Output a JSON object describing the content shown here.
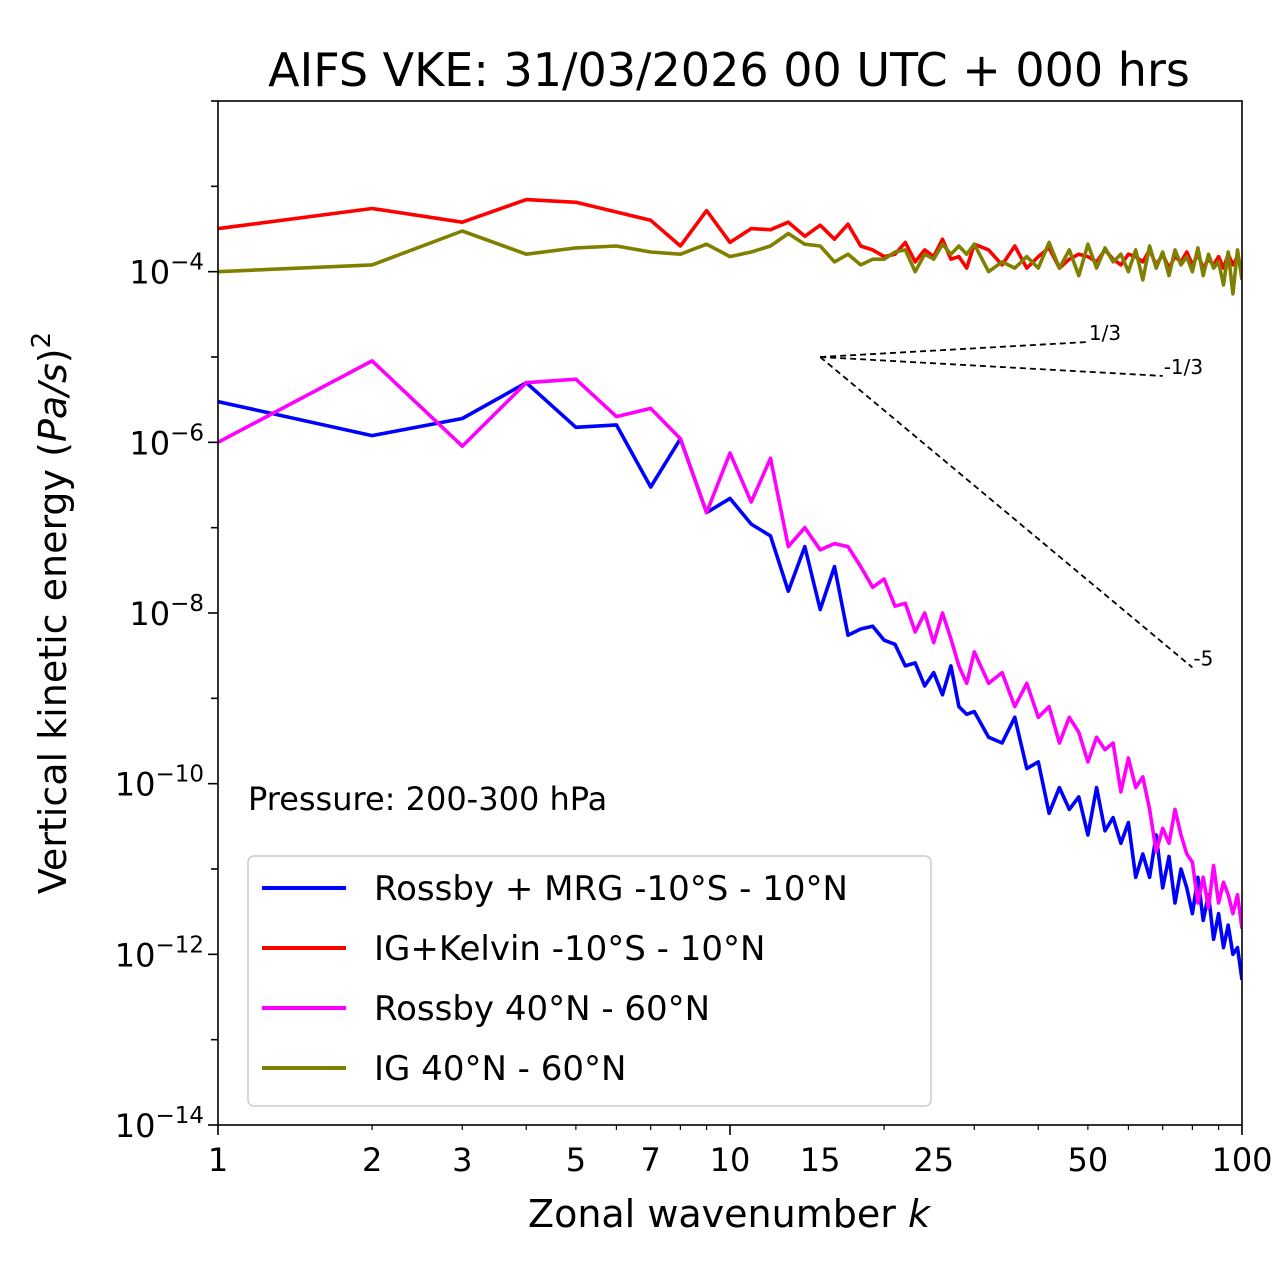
{
  "chart_data": {
    "type": "line",
    "title": "AIFS VKE: 31/03/2026 00 UTC + 000 hrs",
    "xlabel_prefix": "Zonal wavenumber ",
    "xlabel_var": "k",
    "ylabel_prefix": "Vertical kinetic energy (",
    "ylabel_var": "Pa/s",
    "ylabel_suffix": ")",
    "ylabel_power": "2",
    "xscale": "log",
    "yscale": "log",
    "xlim": [
      1,
      100
    ],
    "ylim": [
      1e-14,
      0.01
    ],
    "x_ticks": [
      1,
      2,
      3,
      5,
      7,
      10,
      15,
      25,
      50,
      100
    ],
    "x_tick_labels": [
      "1",
      "2",
      "3",
      "5",
      "7",
      "10",
      "15",
      "25",
      "50",
      "100"
    ],
    "y_ticks": [
      {
        "value": 0.0001,
        "base": "10",
        "exp": "−4"
      },
      {
        "value": 1e-06,
        "base": "10",
        "exp": "−6"
      },
      {
        "value": 1e-08,
        "base": "10",
        "exp": "−8"
      },
      {
        "value": 1e-10,
        "base": "10",
        "exp": "−10"
      },
      {
        "value": 1e-12,
        "base": "10",
        "exp": "−12"
      },
      {
        "value": 1e-14,
        "base": "10",
        "exp": "−14"
      }
    ],
    "annotation": "Pressure: 200-300 hPa",
    "legend_position": "lower-left",
    "reference_slopes": [
      {
        "label": "1/3",
        "x0": 15,
        "y0": 1e-05,
        "x1": 50,
        "y1": 1.5e-05
      },
      {
        "label": "-1/3",
        "x0": 15,
        "y0": 1e-05,
        "x1": 70,
        "y1": 6e-06
      },
      {
        "label": "-5",
        "x0": 15,
        "y0": 1e-05,
        "x1": 80,
        "y1": 2.3e-09
      }
    ],
    "series": [
      {
        "name": "Rossby + MRG -10°S - 10°N",
        "color": "#0000ff",
        "x": [
          1,
          2,
          3,
          4,
          5,
          6,
          7,
          8,
          9,
          10,
          11,
          12,
          13,
          14,
          15,
          16,
          17,
          18,
          19,
          20,
          21,
          22,
          23,
          24,
          25,
          26,
          27,
          28,
          29,
          30,
          32,
          34,
          36,
          38,
          40,
          42,
          44,
          46,
          48,
          50,
          52,
          54,
          56,
          58,
          60,
          62,
          64,
          66,
          68,
          70,
          72,
          74,
          76,
          78,
          80,
          82,
          84,
          86,
          88,
          90,
          92,
          94,
          96,
          98,
          100
        ],
        "values": [
          3e-06,
          1.2e-06,
          1.9e-06,
          5e-06,
          1.5e-06,
          1.6e-06,
          3e-07,
          1.1e-06,
          1.5e-07,
          2.2e-07,
          1.1e-07,
          8e-08,
          1.8e-08,
          6e-08,
          1.1e-08,
          3.5e-08,
          5.5e-09,
          6.5e-09,
          7e-09,
          4.8e-09,
          4.3e-09,
          2.4e-09,
          2.6e-09,
          1.4e-09,
          2e-09,
          1.1e-09,
          2.4e-09,
          8e-10,
          6.5e-10,
          7e-10,
          3.5e-10,
          3e-10,
          6e-10,
          1.5e-10,
          1.8e-10,
          4.5e-11,
          9e-11,
          5e-11,
          7e-11,
          2.5e-11,
          9e-11,
          2.8e-11,
          4e-11,
          2e-11,
          3.5e-11,
          8e-12,
          1.5e-11,
          8e-12,
          2.5e-11,
          6e-12,
          1.4e-11,
          4e-12,
          1e-11,
          6e-12,
          3e-12,
          8e-12,
          2.5e-12,
          5e-12,
          1.5e-12,
          3e-12,
          1.2e-12,
          2.2e-12,
          1e-12,
          1.2e-12,
          5e-13
        ]
      },
      {
        "name": "IG+Kelvin -10°S - 10°N",
        "color": "#ff0000",
        "x": [
          1,
          2,
          3,
          4,
          5,
          6,
          7,
          8,
          9,
          10,
          11,
          12,
          13,
          14,
          15,
          16,
          17,
          18,
          19,
          20,
          21,
          22,
          23,
          24,
          25,
          26,
          27,
          28,
          29,
          30,
          32,
          34,
          36,
          38,
          40,
          42,
          44,
          46,
          48,
          50,
          52,
          54,
          56,
          58,
          60,
          62,
          64,
          66,
          68,
          70,
          72,
          74,
          76,
          78,
          80,
          82,
          84,
          86,
          88,
          90,
          92,
          94,
          96,
          98,
          100
        ],
        "values": [
          0.00032,
          0.00055,
          0.00038,
          0.0007,
          0.00065,
          0.0005,
          0.0004,
          0.0002,
          0.00052,
          0.00022,
          0.00032,
          0.00031,
          0.00038,
          0.00026,
          0.00035,
          0.00024,
          0.00036,
          0.0002,
          0.00018,
          0.00015,
          0.00016,
          0.00022,
          0.00013,
          0.00018,
          0.00015,
          0.00024,
          0.00014,
          0.00015,
          0.00011,
          0.00021,
          0.00018,
          0.00012,
          0.0002,
          0.00011,
          0.00015,
          0.00019,
          0.00011,
          0.00014,
          0.00016,
          0.00015,
          0.00013,
          0.00018,
          0.00014,
          0.00012,
          0.00016,
          0.00015,
          0.00013,
          0.00018,
          0.00012,
          0.00016,
          0.00011,
          0.00015,
          0.00013,
          0.00017,
          0.00012,
          0.00016,
          0.00011,
          0.00014,
          0.00012,
          0.00015,
          0.00011,
          0.00016,
          0.00012,
          0.00015,
          0.00011
        ]
      },
      {
        "name": "Rossby 40°N - 60°N",
        "color": "#ff00ff",
        "x": [
          1,
          2,
          3,
          4,
          5,
          6,
          7,
          8,
          9,
          10,
          11,
          12,
          13,
          14,
          15,
          16,
          17,
          18,
          19,
          20,
          21,
          22,
          23,
          24,
          25,
          26,
          27,
          28,
          29,
          30,
          32,
          34,
          36,
          38,
          40,
          42,
          44,
          46,
          48,
          50,
          52,
          54,
          56,
          58,
          60,
          62,
          64,
          66,
          68,
          70,
          72,
          74,
          76,
          78,
          80,
          82,
          84,
          86,
          88,
          90,
          92,
          94,
          96,
          98,
          100
        ],
        "values": [
          1e-06,
          9e-06,
          9e-07,
          5e-06,
          5.5e-06,
          2e-06,
          2.5e-06,
          1.1e-06,
          1.5e-07,
          7.5e-07,
          2e-07,
          6.5e-07,
          6e-08,
          1e-07,
          5.5e-08,
          6.5e-08,
          6e-08,
          3.5e-08,
          2e-08,
          2.5e-08,
          1.2e-08,
          1.3e-08,
          6e-09,
          1e-08,
          4.5e-09,
          1e-08,
          5e-09,
          2.4e-09,
          1.5e-09,
          3.5e-09,
          1.5e-09,
          2e-09,
          8e-10,
          1.5e-09,
          6e-10,
          8e-10,
          3e-10,
          6e-10,
          4e-10,
          1.8e-10,
          3.5e-10,
          2.5e-10,
          3e-10,
          8e-11,
          2e-10,
          9e-11,
          1.2e-10,
          5e-11,
          1.6e-11,
          3e-11,
          2e-11,
          5e-11,
          2.5e-11,
          1.5e-11,
          1.2e-11,
          4e-12,
          8e-12,
          3.5e-12,
          1.1e-11,
          4e-12,
          7e-12,
          5e-12,
          3e-12,
          5e-12,
          2e-12
        ]
      },
      {
        "name": "IG 40°N - 60°N",
        "color": "#808000",
        "x": [
          1,
          2,
          3,
          4,
          5,
          6,
          7,
          8,
          9,
          10,
          11,
          12,
          13,
          14,
          15,
          16,
          17,
          18,
          19,
          20,
          21,
          22,
          23,
          24,
          25,
          26,
          27,
          28,
          29,
          30,
          32,
          34,
          36,
          38,
          40,
          42,
          44,
          46,
          48,
          50,
          52,
          54,
          56,
          58,
          60,
          62,
          64,
          66,
          68,
          70,
          72,
          74,
          76,
          78,
          80,
          82,
          84,
          86,
          88,
          90,
          92,
          94,
          96,
          98,
          100
        ],
        "values": [
          0.0001,
          0.00012,
          0.0003,
          0.00016,
          0.00019,
          0.0002,
          0.00017,
          0.00016,
          0.00021,
          0.00015,
          0.00017,
          0.0002,
          0.00028,
          0.00021,
          0.0002,
          0.00013,
          0.00016,
          0.00012,
          0.00014,
          0.00014,
          0.00017,
          0.00018,
          0.0001,
          0.00016,
          0.00014,
          0.00021,
          0.00016,
          0.0002,
          0.00016,
          0.00021,
          0.0001,
          0.00013,
          0.00011,
          0.00015,
          0.00011,
          0.00022,
          0.00011,
          0.00018,
          9e-05,
          0.00021,
          0.00011,
          0.00019,
          0.00013,
          0.00016,
          0.0001,
          0.00018,
          8e-05,
          0.0002,
          0.00011,
          0.00017,
          9e-05,
          0.00018,
          0.00012,
          0.00015,
          0.0001,
          0.00019,
          9e-05,
          0.00016,
          0.00011,
          0.00013,
          7e-05,
          0.00017,
          5.5e-05,
          0.00018,
          8e-05
        ]
      }
    ]
  }
}
